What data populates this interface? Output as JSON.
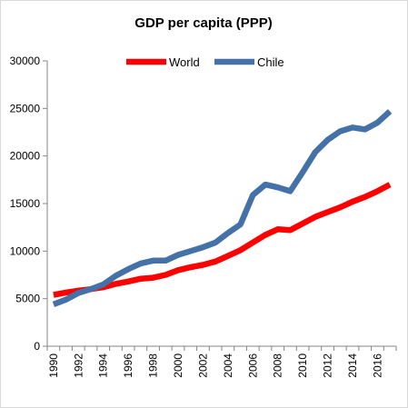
{
  "chart_data": {
    "type": "line",
    "title": "GDP per capita (PPP)",
    "xlabel": "",
    "ylabel": "",
    "ylim": [
      0,
      30000
    ],
    "y_ticks": [
      "0",
      "5000",
      "10000",
      "15000",
      "20000",
      "25000",
      "30000"
    ],
    "x_tick_labels": [
      "1990",
      "1992",
      "1994",
      "1996",
      "1998",
      "2000",
      "2002",
      "2004",
      "2006",
      "2008",
      "2010",
      "2012",
      "2014",
      "2016"
    ],
    "x": [
      1990,
      1991,
      1992,
      1993,
      1994,
      1995,
      1996,
      1997,
      1998,
      1999,
      2000,
      2001,
      2002,
      2003,
      2004,
      2005,
      2006,
      2007,
      2008,
      2009,
      2010,
      2011,
      2012,
      2013,
      2014,
      2015,
      2016,
      2017
    ],
    "legend_position": "top",
    "grid": false,
    "series": [
      {
        "name": "World",
        "color": "#ff0000",
        "values": [
          5400,
          5650,
          5850,
          6000,
          6200,
          6550,
          6800,
          7100,
          7200,
          7500,
          8000,
          8300,
          8550,
          8900,
          9500,
          10100,
          10900,
          11700,
          12300,
          12200,
          12900,
          13600,
          14100,
          14600,
          15200,
          15700,
          16300,
          17000
        ]
      },
      {
        "name": "Chile",
        "color": "#4472a8",
        "values": [
          4400,
          4900,
          5600,
          6000,
          6500,
          7400,
          8100,
          8700,
          9000,
          9000,
          9600,
          10000,
          10400,
          10900,
          11900,
          12800,
          15900,
          17000,
          16700,
          16300,
          18300,
          20400,
          21700,
          22600,
          23000,
          22800,
          23500,
          24700
        ]
      }
    ]
  }
}
